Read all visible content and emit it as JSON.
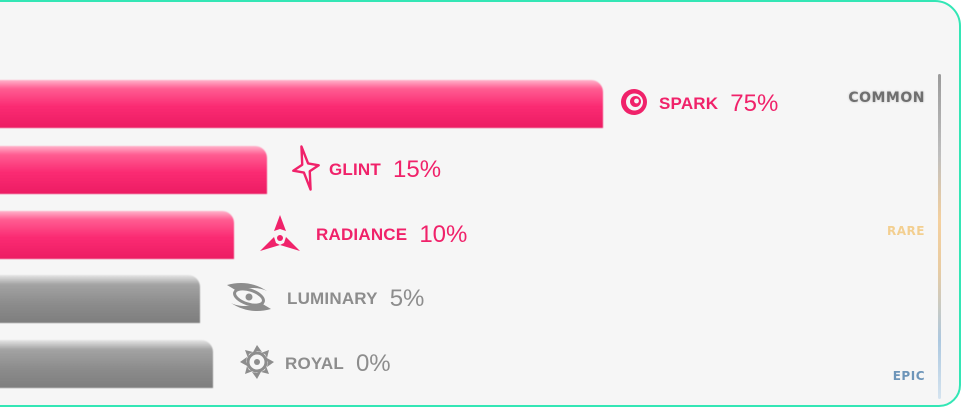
{
  "rows": [
    {
      "name": "SPARK",
      "percent": "75%",
      "fill": 0.75,
      "state": "hot",
      "icon": "spiral-icon"
    },
    {
      "name": "GLINT",
      "percent": "15%",
      "fill": 0.15,
      "state": "hot",
      "icon": "four-point-star-icon"
    },
    {
      "name": "RADIANCE",
      "percent": "10%",
      "fill": 0.1,
      "state": "hot",
      "icon": "tri-blade-icon"
    },
    {
      "name": "LUMINARY",
      "percent": "5%",
      "fill": 0.05,
      "state": "dim",
      "icon": "galaxy-swirl-icon"
    },
    {
      "name": "ROYAL",
      "percent": "0%",
      "fill": 0.0,
      "state": "dim",
      "icon": "cog-swirl-icon"
    }
  ],
  "tiers": {
    "common": "COMMON",
    "rare": "RARE",
    "epic": "EPIC"
  },
  "colors": {
    "accent": "#f0226a",
    "inactive": "#8d8d8d",
    "frame": "#33e6b5",
    "rare": "#f3cf90",
    "epic": "#6d95b9"
  }
}
